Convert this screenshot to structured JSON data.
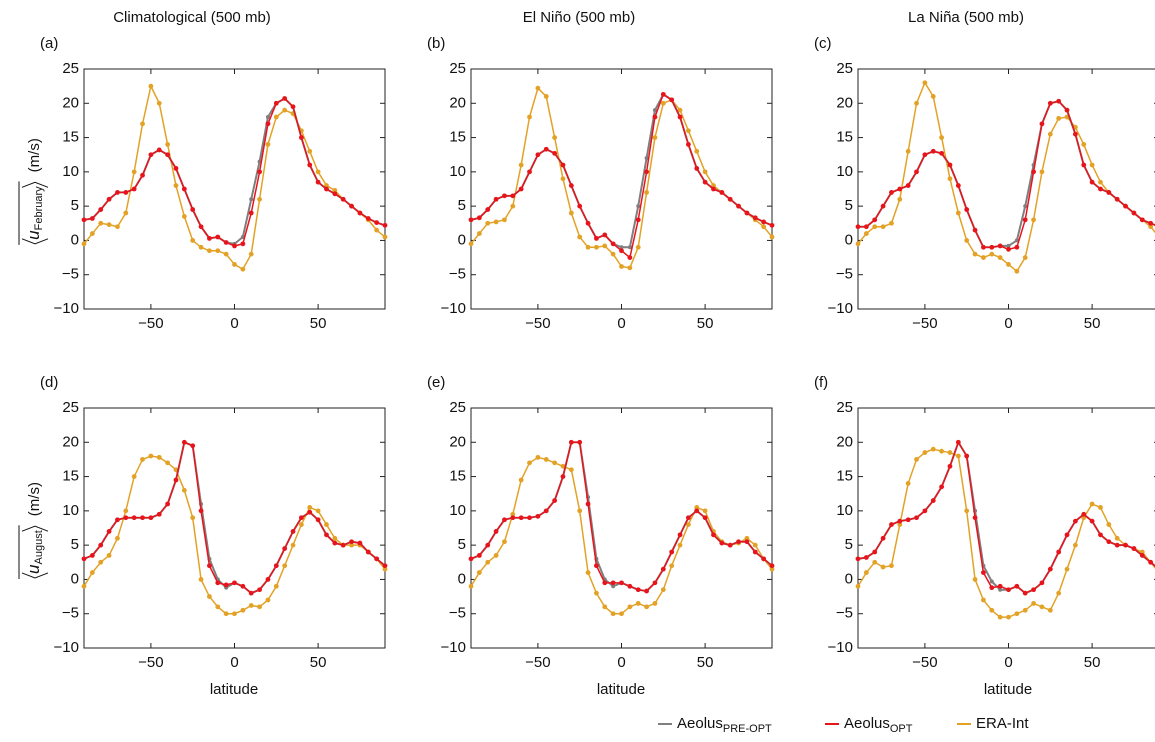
{
  "legend": [
    {
      "name": "Aeolus",
      "sub": "PRE-OPT",
      "color": "#7f7f7f"
    },
    {
      "name": "Aeolus",
      "sub": "OPT",
      "color": "#e8141c"
    },
    {
      "name": "ERA-Int",
      "color": "#e3a226"
    }
  ],
  "chart_data": [
    {
      "type": "line",
      "label": "(a)",
      "title": "Climatological (500 mb)",
      "ylabel": {
        "var": "u",
        "sub": "February",
        "unit": "(m/s)"
      },
      "x": [
        -90,
        -85,
        -80,
        -75,
        -70,
        -65,
        -60,
        -55,
        -50,
        -45,
        -40,
        -35,
        -30,
        -25,
        -20,
        -15,
        -10,
        -5,
        0,
        5,
        10,
        15,
        20,
        25,
        30,
        35,
        40,
        45,
        50,
        55,
        60,
        65,
        70,
        75,
        80,
        85,
        90
      ],
      "series": [
        {
          "values": [
            3,
            3.2,
            4.5,
            6,
            7,
            7,
            7.5,
            9.5,
            12.5,
            13.2,
            12.5,
            10.5,
            7.5,
            4.5,
            2,
            0.3,
            0.5,
            -0.3,
            -0.5,
            0.5,
            6,
            11.5,
            18,
            20,
            20.7,
            19.5,
            15,
            11,
            8.5,
            7.5,
            6.8,
            6,
            5,
            4,
            3.2,
            2.6,
            2.2
          ]
        },
        {
          "values": [
            3,
            3.2,
            4.5,
            6,
            7,
            7,
            7.5,
            9.5,
            12.5,
            13.2,
            12.5,
            10.5,
            7.5,
            4.5,
            2,
            0.3,
            0.5,
            -0.3,
            -0.8,
            -0.5,
            4,
            10,
            17,
            20,
            20.7,
            19.5,
            15,
            11,
            8.5,
            7.5,
            6.8,
            6,
            5,
            4,
            3.2,
            2.6,
            2.2
          ]
        },
        {
          "values": [
            -0.5,
            1,
            2.5,
            2.3,
            2,
            4,
            10,
            17,
            22.5,
            20,
            14,
            8,
            3.5,
            0,
            -1,
            -1.5,
            -1.5,
            -2,
            -3.5,
            -4.2,
            -2,
            6,
            14,
            18,
            19,
            18.5,
            16,
            13,
            10,
            8,
            7.3,
            6,
            5,
            4,
            3,
            1.5,
            0.5
          ]
        }
      ],
      "xlim": [
        -90,
        90
      ],
      "ylim": [
        -10,
        25
      ],
      "xticks": [
        {
          "value": -50,
          "label": "−50"
        },
        0,
        50
      ],
      "yticks": [
        {
          "value": -10,
          "label": "−10"
        },
        {
          "value": -5,
          "label": "−5"
        },
        0,
        5,
        10,
        15,
        20,
        25
      ]
    },
    {
      "type": "line",
      "label": "(b)",
      "title": "El Niño (500 mb)",
      "x": [
        -90,
        -85,
        -80,
        -75,
        -70,
        -65,
        -60,
        -55,
        -50,
        -45,
        -40,
        -35,
        -30,
        -25,
        -20,
        -15,
        -10,
        -5,
        0,
        5,
        10,
        15,
        20,
        25,
        30,
        35,
        40,
        45,
        50,
        55,
        60,
        65,
        70,
        75,
        80,
        85,
        90
      ],
      "series": [
        {
          "values": [
            3,
            3.3,
            4.5,
            6,
            6.5,
            6.5,
            7.5,
            10,
            12.5,
            13.3,
            12.7,
            11,
            8,
            5,
            2.5,
            0.3,
            0.8,
            -0.5,
            -1,
            -1,
            5,
            12,
            19,
            21.3,
            20.5,
            18,
            14,
            10.5,
            8.5,
            7.5,
            7,
            6,
            5,
            4,
            3.3,
            2.7,
            2.2
          ]
        },
        {
          "values": [
            3,
            3.3,
            4.5,
            6,
            6.5,
            6.5,
            7.5,
            10,
            12.5,
            13.3,
            12.7,
            11,
            8,
            5,
            2.5,
            0.3,
            0.8,
            -0.5,
            -1.5,
            -2.5,
            3,
            10,
            18,
            21.3,
            20.5,
            18,
            14,
            10.5,
            8.5,
            7.5,
            7,
            6,
            5,
            4,
            3.3,
            2.7,
            2.2
          ]
        },
        {
          "values": [
            -0.5,
            1,
            2.5,
            2.7,
            3,
            5,
            11,
            18,
            22.2,
            21,
            15,
            9,
            4,
            0.5,
            -1,
            -1,
            -0.8,
            -2,
            -3.8,
            -4,
            -1,
            7,
            15,
            20,
            20.5,
            19,
            16,
            13,
            10,
            8,
            7,
            6,
            5,
            4,
            3,
            2,
            0.5
          ]
        }
      ],
      "xlim": [
        -90,
        90
      ],
      "ylim": [
        -10,
        25
      ],
      "xticks": [
        {
          "value": -50,
          "label": "−50"
        },
        0,
        50
      ],
      "yticks": [
        {
          "value": -10,
          "label": "−10"
        },
        {
          "value": -5,
          "label": "−5"
        },
        0,
        5,
        10,
        15,
        20,
        25
      ]
    },
    {
      "type": "line",
      "label": "(c)",
      "title": "La Niña (500 mb)",
      "x": [
        -90,
        -85,
        -80,
        -75,
        -70,
        -65,
        -60,
        -55,
        -50,
        -45,
        -40,
        -35,
        -30,
        -25,
        -20,
        -15,
        -10,
        -5,
        0,
        5,
        10,
        15,
        20,
        25,
        30,
        35,
        40,
        45,
        50,
        55,
        60,
        65,
        70,
        75,
        80,
        85,
        90
      ],
      "series": [
        {
          "values": [
            2,
            2,
            3,
            5,
            7,
            7.5,
            8,
            10,
            12.5,
            13,
            12.7,
            11,
            8,
            4.5,
            1.5,
            -1,
            -1,
            -0.8,
            -0.8,
            0,
            5,
            11,
            17,
            20,
            20.3,
            19,
            15.5,
            11,
            8.5,
            7.5,
            7,
            6,
            5,
            4,
            3,
            2.5,
            2
          ]
        },
        {
          "values": [
            2,
            2,
            3,
            5,
            7,
            7.5,
            8,
            10,
            12.5,
            13,
            12.7,
            11,
            8,
            4.5,
            1.5,
            -1,
            -1,
            -0.8,
            -1.3,
            -1,
            3,
            10,
            17,
            20,
            20.3,
            19,
            15.5,
            11,
            8.5,
            7.5,
            7,
            6,
            5,
            4,
            3,
            2.5,
            2
          ]
        },
        {
          "values": [
            -0.5,
            1,
            2,
            2,
            2.5,
            6,
            13,
            20,
            23,
            21,
            15,
            9,
            4,
            0,
            -2,
            -2.5,
            -2,
            -2.5,
            -3.5,
            -4.5,
            -2.5,
            3,
            10,
            15.5,
            17.8,
            18,
            16.5,
            14,
            11,
            8.5,
            7,
            6,
            5,
            4,
            3,
            2,
            0.5
          ]
        }
      ],
      "xlim": [
        -90,
        90
      ],
      "ylim": [
        -10,
        25
      ],
      "xticks": [
        {
          "value": -50,
          "label": "−50"
        },
        0,
        50
      ],
      "yticks": [
        {
          "value": -10,
          "label": "−10"
        },
        {
          "value": -5,
          "label": "−5"
        },
        0,
        5,
        10,
        15,
        20,
        25
      ]
    },
    {
      "type": "line",
      "label": "(d)",
      "ylabel": {
        "var": "u",
        "sub": "August",
        "unit": "(m/s)"
      },
      "xlabel": "latitude",
      "x": [
        -90,
        -85,
        -80,
        -75,
        -70,
        -65,
        -60,
        -55,
        -50,
        -45,
        -40,
        -35,
        -30,
        -25,
        -20,
        -15,
        -10,
        -5,
        0,
        5,
        10,
        15,
        20,
        25,
        30,
        35,
        40,
        45,
        50,
        55,
        60,
        65,
        70,
        75,
        80,
        85,
        90
      ],
      "series": [
        {
          "values": [
            3,
            3.5,
            5,
            7,
            8.7,
            9,
            9,
            9,
            9,
            9.5,
            11,
            14.5,
            20,
            19.5,
            11,
            3,
            0,
            -1.2,
            -0.5,
            -1,
            -2,
            -1.5,
            0,
            2,
            4.5,
            7,
            9,
            9.8,
            8.7,
            6.5,
            5.3,
            5,
            5.5,
            5.3,
            4,
            3,
            2
          ]
        },
        {
          "values": [
            3,
            3.5,
            5,
            7,
            8.7,
            9,
            9,
            9,
            9,
            9.5,
            11,
            14.5,
            20,
            19.5,
            10,
            2,
            -0.5,
            -0.8,
            -0.5,
            -1,
            -2,
            -1.5,
            0,
            2,
            4.5,
            7,
            9,
            9.8,
            8.7,
            6.5,
            5.3,
            5,
            5.5,
            5.3,
            4,
            3,
            2
          ]
        },
        {
          "values": [
            -1,
            1,
            2.5,
            3.5,
            6,
            10,
            15,
            17.5,
            18,
            17.8,
            17,
            16,
            13,
            9,
            0,
            -2.5,
            -4,
            -5,
            -5,
            -4.5,
            -3.8,
            -4,
            -3,
            -1,
            2,
            5,
            8,
            10.5,
            10,
            8,
            6,
            5,
            5,
            5,
            4,
            3,
            1.5
          ]
        }
      ],
      "xlim": [
        -90,
        90
      ],
      "ylim": [
        -10,
        25
      ],
      "xticks": [
        {
          "value": -50,
          "label": "−50"
        },
        0,
        50
      ],
      "yticks": [
        {
          "value": -10,
          "label": "−10"
        },
        {
          "value": -5,
          "label": "−5"
        },
        0,
        5,
        10,
        15,
        20,
        25
      ]
    },
    {
      "type": "line",
      "label": "(e)",
      "xlabel": "latitude",
      "x": [
        -90,
        -85,
        -80,
        -75,
        -70,
        -65,
        -60,
        -55,
        -50,
        -45,
        -40,
        -35,
        -30,
        -25,
        -20,
        -15,
        -10,
        -5,
        0,
        5,
        10,
        15,
        20,
        25,
        30,
        35,
        40,
        45,
        50,
        55,
        60,
        65,
        70,
        75,
        80,
        85,
        90
      ],
      "series": [
        {
          "values": [
            3,
            3.5,
            5,
            7,
            8.7,
            9,
            9,
            9,
            9.2,
            10,
            11.5,
            15,
            20,
            20,
            12,
            3,
            0,
            -1,
            -0.5,
            -1,
            -1.5,
            -1.7,
            -0.5,
            1.5,
            4,
            6.5,
            9,
            10,
            9,
            6.5,
            5.3,
            5,
            5.5,
            5.5,
            4,
            3,
            2
          ]
        },
        {
          "values": [
            3,
            3.5,
            5,
            7,
            8.7,
            9,
            9,
            9,
            9.2,
            10,
            11.5,
            15,
            20,
            20,
            11,
            2,
            -0.5,
            -0.5,
            -0.5,
            -1,
            -1.5,
            -1.7,
            -0.5,
            1.5,
            4,
            6.5,
            9,
            10,
            9,
            6.5,
            5.3,
            5,
            5.5,
            5.5,
            4,
            3,
            2
          ]
        },
        {
          "values": [
            -1,
            1,
            2.5,
            3.5,
            5.5,
            9.5,
            14.5,
            17,
            17.8,
            17.5,
            17,
            16.5,
            16,
            10,
            1,
            -2,
            -4,
            -5,
            -5,
            -4,
            -3.5,
            -4,
            -3.5,
            -1.5,
            2,
            5,
            8,
            10.5,
            10,
            7,
            5.5,
            5,
            5.3,
            6,
            5,
            3,
            1.5
          ]
        }
      ],
      "xlim": [
        -90,
        90
      ],
      "ylim": [
        -10,
        25
      ],
      "xticks": [
        {
          "value": -50,
          "label": "−50"
        },
        0,
        50
      ],
      "yticks": [
        {
          "value": -10,
          "label": "−10"
        },
        {
          "value": -5,
          "label": "−5"
        },
        0,
        5,
        10,
        15,
        20,
        25
      ]
    },
    {
      "type": "line",
      "label": "(f)",
      "xlabel": "latitude",
      "x": [
        -90,
        -85,
        -80,
        -75,
        -70,
        -65,
        -60,
        -55,
        -50,
        -45,
        -40,
        -35,
        -30,
        -25,
        -20,
        -15,
        -10,
        -5,
        0,
        5,
        10,
        15,
        20,
        25,
        30,
        35,
        40,
        45,
        50,
        55,
        60,
        65,
        70,
        75,
        80,
        85,
        90
      ],
      "series": [
        {
          "values": [
            3,
            3.2,
            4,
            6,
            8,
            8.5,
            8.7,
            9,
            10,
            11.5,
            13.5,
            16.5,
            20,
            18,
            10,
            2,
            -0.3,
            -1.5,
            -1.5,
            -1,
            -2,
            -1.5,
            -0.5,
            1.5,
            4,
            6.5,
            8.5,
            9.5,
            8.5,
            6.5,
            5.5,
            5,
            5,
            4.5,
            3.5,
            2.5,
            1.5
          ]
        },
        {
          "values": [
            3,
            3.2,
            4,
            6,
            8,
            8.5,
            8.7,
            9,
            10,
            11.5,
            13.5,
            16.5,
            20,
            18,
            9,
            1,
            -1.2,
            -1,
            -1.5,
            -1,
            -2,
            -1.5,
            -0.5,
            1.5,
            4,
            6.5,
            8.5,
            9.5,
            8.5,
            6.5,
            5.5,
            5,
            5,
            4.5,
            3.5,
            2.5,
            1.5
          ]
        },
        {
          "values": [
            -1,
            1,
            2.5,
            1.8,
            2,
            8,
            14,
            17.5,
            18.5,
            19,
            18.7,
            18.5,
            18,
            10,
            0,
            -3,
            -4.5,
            -5.5,
            -5.5,
            -5,
            -4.5,
            -3.5,
            -4,
            -4.5,
            -2,
            1.5,
            5,
            9,
            11,
            10.5,
            8,
            6,
            5,
            4.5,
            4,
            2.5,
            1
          ]
        }
      ],
      "xlim": [
        -90,
        90
      ],
      "ylim": [
        -10,
        25
      ],
      "xticks": [
        {
          "value": -50,
          "label": "−50"
        },
        0,
        50
      ],
      "yticks": [
        {
          "value": -10,
          "label": "−10"
        },
        {
          "value": -5,
          "label": "−5"
        },
        0,
        5,
        10,
        15,
        20,
        25
      ]
    }
  ]
}
